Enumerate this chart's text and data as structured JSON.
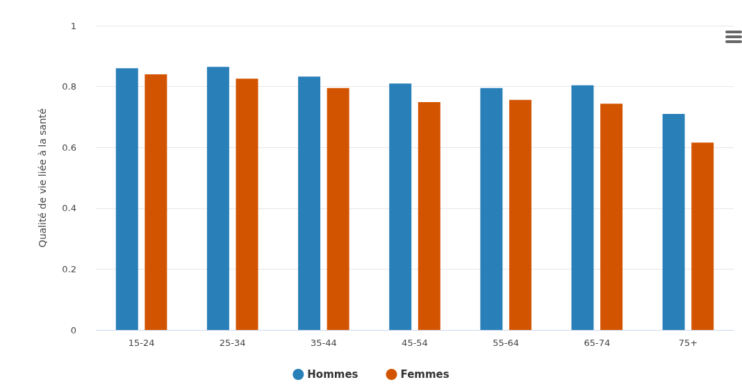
{
  "chart_data": {
    "type": "bar",
    "ylabel": "Qualité de vie liée à la santé",
    "categories": [
      "15-24",
      "25-34",
      "35-44",
      "45-54",
      "55-64",
      "65-74",
      "75+"
    ],
    "series": [
      {
        "name": "Hommes",
        "color": "#2980b9",
        "values": [
          0.86,
          0.865,
          0.833,
          0.81,
          0.795,
          0.804,
          0.71
        ]
      },
      {
        "name": "Femmes",
        "color": "#d35400",
        "values": [
          0.84,
          0.826,
          0.795,
          0.749,
          0.756,
          0.744,
          0.616
        ]
      }
    ],
    "ylim": [
      0,
      1
    ],
    "yticks": [
      0,
      0.2,
      0.4,
      0.6,
      0.8,
      1
    ],
    "grid": "y",
    "legend": "bottom"
  }
}
